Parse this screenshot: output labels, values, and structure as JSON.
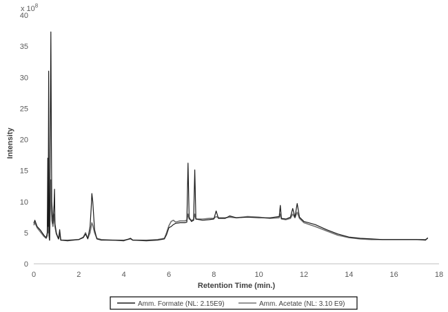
{
  "chart_data": {
    "type": "line",
    "title": "",
    "xlabel": "Retention Time (min.)",
    "ylabel": "Intensity",
    "y_multiplier_label": "x 10",
    "y_multiplier_exponent": "8",
    "xlim": [
      0,
      18
    ],
    "ylim": [
      0,
      40
    ],
    "x_ticks": [
      0,
      2,
      4,
      6,
      8,
      10,
      12,
      14,
      16,
      18
    ],
    "y_ticks": [
      0,
      5,
      10,
      15,
      20,
      25,
      30,
      35,
      40
    ],
    "grid": false,
    "legend_position": "bottom",
    "series": [
      {
        "name": "Amm. Formate (NL: 2.15E9)",
        "color": "#1a1a1a",
        "points": [
          [
            0,
            6.5
          ],
          [
            0.05,
            7.0
          ],
          [
            0.15,
            6.0
          ],
          [
            0.3,
            5.4
          ],
          [
            0.45,
            4.6
          ],
          [
            0.55,
            4.2
          ],
          [
            0.6,
            5.0
          ],
          [
            0.62,
            17.0
          ],
          [
            0.64,
            6.0
          ],
          [
            0.66,
            31.0
          ],
          [
            0.68,
            5.0
          ],
          [
            0.7,
            3.8
          ],
          [
            0.72,
            14.0
          ],
          [
            0.74,
            26.0
          ],
          [
            0.76,
            37.3
          ],
          [
            0.78,
            20.0
          ],
          [
            0.8,
            10.0
          ],
          [
            0.85,
            6.5
          ],
          [
            0.9,
            9.5
          ],
          [
            0.92,
            12.0
          ],
          [
            0.94,
            6.5
          ],
          [
            1.0,
            5.0
          ],
          [
            1.1,
            4.0
          ],
          [
            1.15,
            5.5
          ],
          [
            1.2,
            3.8
          ],
          [
            1.5,
            3.7
          ],
          [
            2.0,
            3.9
          ],
          [
            2.2,
            4.2
          ],
          [
            2.3,
            4.8
          ],
          [
            2.4,
            4.0
          ],
          [
            2.5,
            6.0
          ],
          [
            2.55,
            9.0
          ],
          [
            2.58,
            11.3
          ],
          [
            2.62,
            10.0
          ],
          [
            2.7,
            5.5
          ],
          [
            2.8,
            4.0
          ],
          [
            3.0,
            3.8
          ],
          [
            3.5,
            3.8
          ],
          [
            4.0,
            3.7
          ],
          [
            4.3,
            4.1
          ],
          [
            4.4,
            3.8
          ],
          [
            5.0,
            3.7
          ],
          [
            5.5,
            3.8
          ],
          [
            5.8,
            4.0
          ],
          [
            5.9,
            4.7
          ],
          [
            6.0,
            5.8
          ],
          [
            6.1,
            6.0
          ],
          [
            6.2,
            6.3
          ],
          [
            6.3,
            6.5
          ],
          [
            6.5,
            6.6
          ],
          [
            6.7,
            6.6
          ],
          [
            6.8,
            6.7
          ],
          [
            6.85,
            16.2
          ],
          [
            6.9,
            7.5
          ],
          [
            7.0,
            6.8
          ],
          [
            7.1,
            7.0
          ],
          [
            7.15,
            15.1
          ],
          [
            7.2,
            7.2
          ],
          [
            7.5,
            7.0
          ],
          [
            7.8,
            7.1
          ],
          [
            8.0,
            7.2
          ],
          [
            8.1,
            8.5
          ],
          [
            8.2,
            7.3
          ],
          [
            8.5,
            7.3
          ],
          [
            8.7,
            7.7
          ],
          [
            9.0,
            7.4
          ],
          [
            9.5,
            7.5
          ],
          [
            10.0,
            7.4
          ],
          [
            10.5,
            7.4
          ],
          [
            10.9,
            7.6
          ],
          [
            10.95,
            9.4
          ],
          [
            11.0,
            7.3
          ],
          [
            11.2,
            7.2
          ],
          [
            11.4,
            7.5
          ],
          [
            11.5,
            8.9
          ],
          [
            11.6,
            7.5
          ],
          [
            11.7,
            9.7
          ],
          [
            11.8,
            7.5
          ],
          [
            12.0,
            6.8
          ],
          [
            12.5,
            6.3
          ],
          [
            13.0,
            5.5
          ],
          [
            13.5,
            4.8
          ],
          [
            14.0,
            4.3
          ],
          [
            14.5,
            4.1
          ],
          [
            15.0,
            4.0
          ],
          [
            15.5,
            3.9
          ],
          [
            16.0,
            3.9
          ],
          [
            16.5,
            3.9
          ],
          [
            17.0,
            3.9
          ],
          [
            17.4,
            3.8
          ],
          [
            17.5,
            4.2
          ]
        ]
      },
      {
        "name": "Amm. Acetate (NL: 3.10 E9)",
        "color": "#707070",
        "points": [
          [
            0,
            6.2
          ],
          [
            0.05,
            6.6
          ],
          [
            0.15,
            5.8
          ],
          [
            0.3,
            5.1
          ],
          [
            0.45,
            4.4
          ],
          [
            0.55,
            4.1
          ],
          [
            0.6,
            4.5
          ],
          [
            0.62,
            9.0
          ],
          [
            0.64,
            5.0
          ],
          [
            0.66,
            13.0
          ],
          [
            0.68,
            4.5
          ],
          [
            0.7,
            3.8
          ],
          [
            0.72,
            7.0
          ],
          [
            0.74,
            10.0
          ],
          [
            0.76,
            13.5
          ],
          [
            0.78,
            9.0
          ],
          [
            0.8,
            7.0
          ],
          [
            0.85,
            6.0
          ],
          [
            0.9,
            7.5
          ],
          [
            0.92,
            8.0
          ],
          [
            0.94,
            6.0
          ],
          [
            1.0,
            4.8
          ],
          [
            1.1,
            4.0
          ],
          [
            1.15,
            4.8
          ],
          [
            1.2,
            3.8
          ],
          [
            1.5,
            3.8
          ],
          [
            2.0,
            3.9
          ],
          [
            2.2,
            4.3
          ],
          [
            2.3,
            5.0
          ],
          [
            2.4,
            4.1
          ],
          [
            2.5,
            5.0
          ],
          [
            2.55,
            6.0
          ],
          [
            2.58,
            6.6
          ],
          [
            2.62,
            6.2
          ],
          [
            2.7,
            5.0
          ],
          [
            2.8,
            4.1
          ],
          [
            3.0,
            3.9
          ],
          [
            3.5,
            3.8
          ],
          [
            4.0,
            3.8
          ],
          [
            4.3,
            4.0
          ],
          [
            4.4,
            3.8
          ],
          [
            5.0,
            3.8
          ],
          [
            5.5,
            3.9
          ],
          [
            5.8,
            4.1
          ],
          [
            5.9,
            5.0
          ],
          [
            6.0,
            6.1
          ],
          [
            6.1,
            6.8
          ],
          [
            6.2,
            7.0
          ],
          [
            6.3,
            6.7
          ],
          [
            6.5,
            6.9
          ],
          [
            6.7,
            6.9
          ],
          [
            6.8,
            7.0
          ],
          [
            6.85,
            8.0
          ],
          [
            6.9,
            7.2
          ],
          [
            7.0,
            7.0
          ],
          [
            7.1,
            7.1
          ],
          [
            7.15,
            8.0
          ],
          [
            7.2,
            7.2
          ],
          [
            7.5,
            7.2
          ],
          [
            7.8,
            7.3
          ],
          [
            8.0,
            7.3
          ],
          [
            8.1,
            7.6
          ],
          [
            8.2,
            7.4
          ],
          [
            8.5,
            7.4
          ],
          [
            8.7,
            7.5
          ],
          [
            9.0,
            7.4
          ],
          [
            9.5,
            7.6
          ],
          [
            10.0,
            7.5
          ],
          [
            10.5,
            7.3
          ],
          [
            10.9,
            7.4
          ],
          [
            10.95,
            8.0
          ],
          [
            11.0,
            7.2
          ],
          [
            11.2,
            7.1
          ],
          [
            11.4,
            7.3
          ],
          [
            11.5,
            8.0
          ],
          [
            11.6,
            7.4
          ],
          [
            11.7,
            8.3
          ],
          [
            11.8,
            7.3
          ],
          [
            12.0,
            6.6
          ],
          [
            12.5,
            6.0
          ],
          [
            13.0,
            5.3
          ],
          [
            13.5,
            4.6
          ],
          [
            14.0,
            4.2
          ],
          [
            14.5,
            4.0
          ],
          [
            15.0,
            3.9
          ],
          [
            15.5,
            3.9
          ],
          [
            16.0,
            3.9
          ],
          [
            16.5,
            3.9
          ],
          [
            17.0,
            3.9
          ],
          [
            17.4,
            3.9
          ],
          [
            17.5,
            4.1
          ]
        ]
      }
    ]
  }
}
